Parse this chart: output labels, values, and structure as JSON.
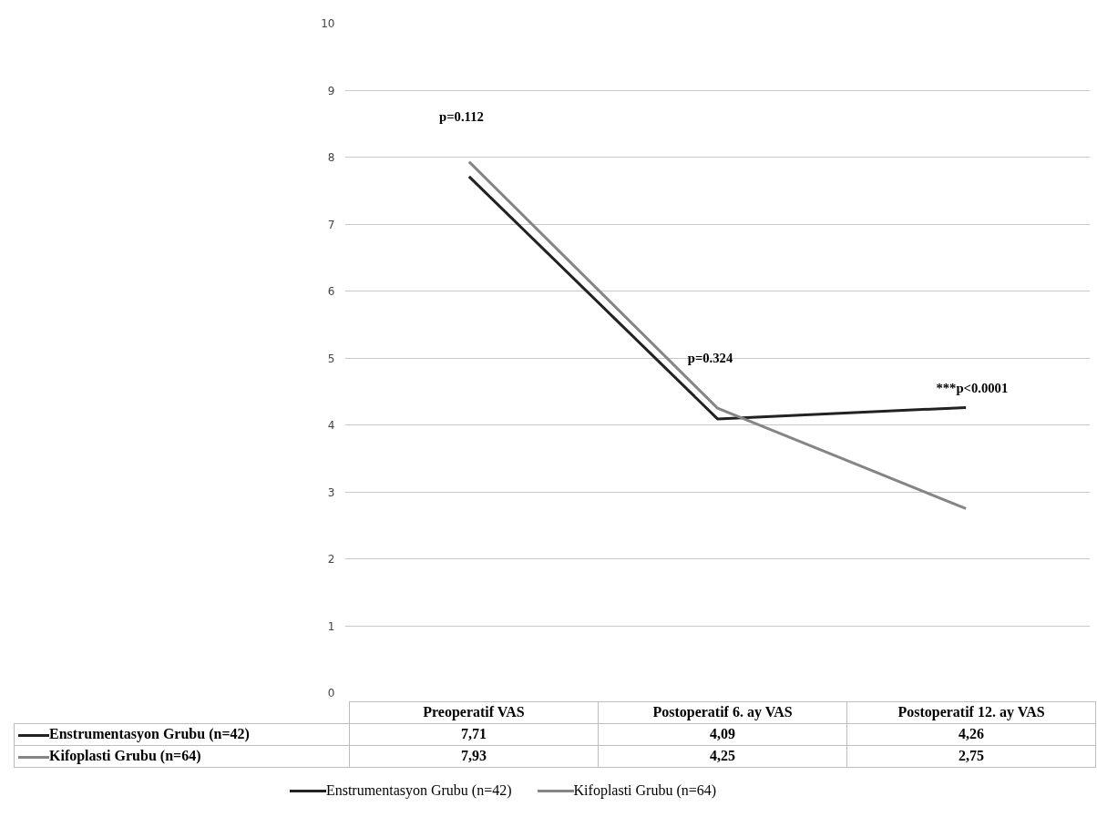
{
  "chart_data": {
    "type": "line",
    "categories": [
      "Preoperatif VAS",
      "Postoperatif 6. ay VAS",
      "Postoperatif 12. ay VAS"
    ],
    "series": [
      {
        "name": "Enstrumentasyon Grubu (n=42)",
        "color": "#222222",
        "values": [
          7.71,
          4.09,
          4.26
        ],
        "value_labels": [
          "7,71",
          "4,09",
          "4,26"
        ]
      },
      {
        "name": "Kifoplasti Grubu (n=64)",
        "color": "#858585",
        "values": [
          7.93,
          4.25,
          2.75
        ],
        "value_labels": [
          "7,93",
          "4,25",
          "2,75"
        ]
      }
    ],
    "ylim": [
      0,
      10
    ],
    "yticks": [
      0,
      1,
      2,
      3,
      4,
      5,
      6,
      7,
      8,
      9,
      10
    ],
    "grid": "y",
    "legend": "bottom",
    "marker": "none",
    "line_style": "solid",
    "annotations": [
      "p=0.112",
      "p=0.324",
      "***p<0.0001"
    ]
  }
}
